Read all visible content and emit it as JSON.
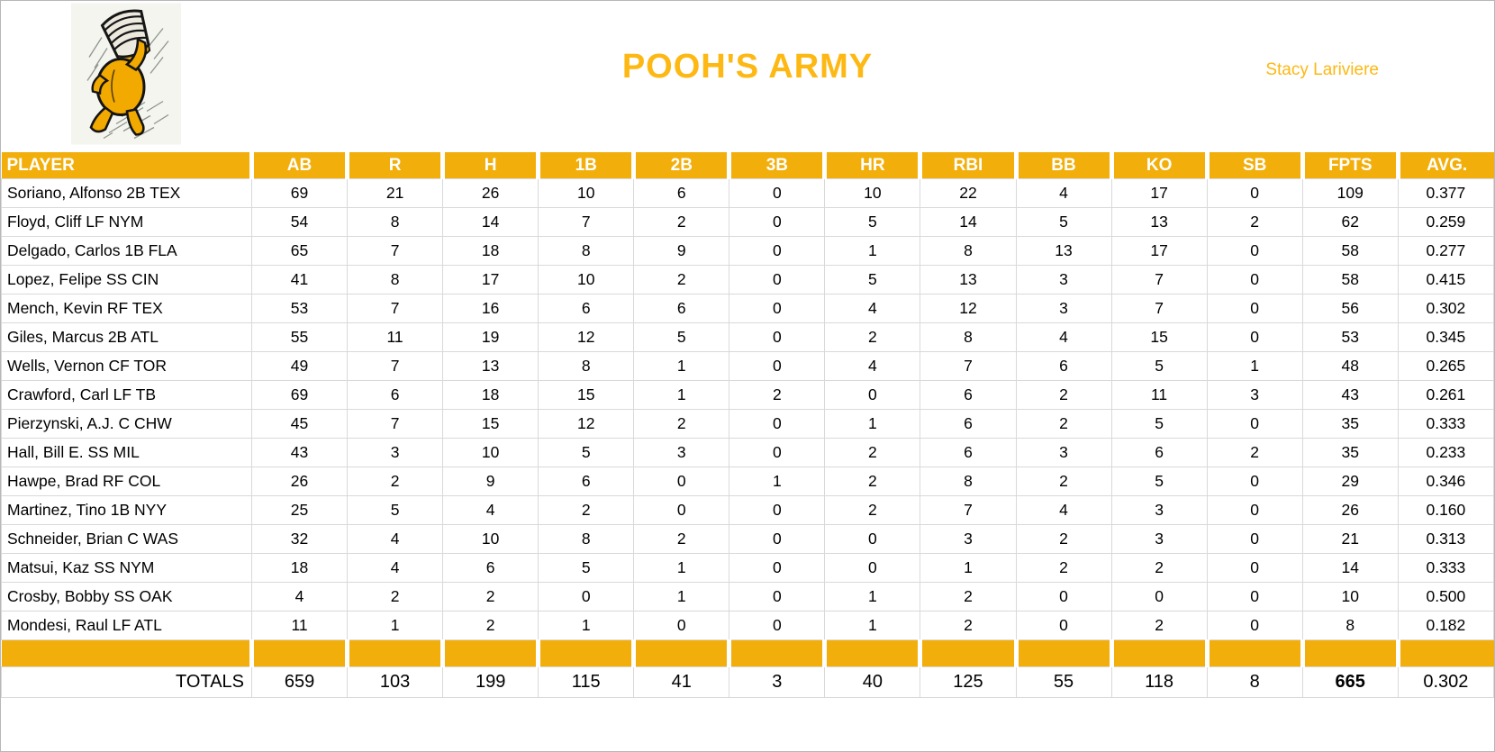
{
  "colors": {
    "gold": "#F2AF0C",
    "title_gold": "#FDB813"
  },
  "header": {
    "title": "POOH'S ARMY",
    "owner": "Stacy Lariviere",
    "logo": "winnie-the-pooh-honey-pot-illustration"
  },
  "table": {
    "columns": [
      "PLAYER",
      "AB",
      "R",
      "H",
      "1B",
      "2B",
      "3B",
      "HR",
      "RBI",
      "BB",
      "KO",
      "SB",
      "FPTS",
      "AVG."
    ],
    "rows": [
      [
        "Soriano, Alfonso 2B TEX",
        "69",
        "21",
        "26",
        "10",
        "6",
        "0",
        "10",
        "22",
        "4",
        "17",
        "0",
        "109",
        "0.377"
      ],
      [
        "Floyd, Cliff LF NYM",
        "54",
        "8",
        "14",
        "7",
        "2",
        "0",
        "5",
        "14",
        "5",
        "13",
        "2",
        "62",
        "0.259"
      ],
      [
        "Delgado, Carlos 1B FLA",
        "65",
        "7",
        "18",
        "8",
        "9",
        "0",
        "1",
        "8",
        "13",
        "17",
        "0",
        "58",
        "0.277"
      ],
      [
        "Lopez, Felipe SS CIN",
        "41",
        "8",
        "17",
        "10",
        "2",
        "0",
        "5",
        "13",
        "3",
        "7",
        "0",
        "58",
        "0.415"
      ],
      [
        "Mench, Kevin RF TEX",
        "53",
        "7",
        "16",
        "6",
        "6",
        "0",
        "4",
        "12",
        "3",
        "7",
        "0",
        "56",
        "0.302"
      ],
      [
        "Giles, Marcus 2B ATL",
        "55",
        "11",
        "19",
        "12",
        "5",
        "0",
        "2",
        "8",
        "4",
        "15",
        "0",
        "53",
        "0.345"
      ],
      [
        "Wells, Vernon CF TOR",
        "49",
        "7",
        "13",
        "8",
        "1",
        "0",
        "4",
        "7",
        "6",
        "5",
        "1",
        "48",
        "0.265"
      ],
      [
        "Crawford, Carl LF TB",
        "69",
        "6",
        "18",
        "15",
        "1",
        "2",
        "0",
        "6",
        "2",
        "11",
        "3",
        "43",
        "0.261"
      ],
      [
        "Pierzynski, A.J. C CHW",
        "45",
        "7",
        "15",
        "12",
        "2",
        "0",
        "1",
        "6",
        "2",
        "5",
        "0",
        "35",
        "0.333"
      ],
      [
        "Hall, Bill E. SS MIL",
        "43",
        "3",
        "10",
        "5",
        "3",
        "0",
        "2",
        "6",
        "3",
        "6",
        "2",
        "35",
        "0.233"
      ],
      [
        "Hawpe, Brad RF COL",
        "26",
        "2",
        "9",
        "6",
        "0",
        "1",
        "2",
        "8",
        "2",
        "5",
        "0",
        "29",
        "0.346"
      ],
      [
        "Martinez, Tino 1B NYY",
        "25",
        "5",
        "4",
        "2",
        "0",
        "0",
        "2",
        "7",
        "4",
        "3",
        "0",
        "26",
        "0.160"
      ],
      [
        "Schneider, Brian C WAS",
        "32",
        "4",
        "10",
        "8",
        "2",
        "0",
        "0",
        "3",
        "2",
        "3",
        "0",
        "21",
        "0.313"
      ],
      [
        "Matsui, Kaz SS NYM",
        "18",
        "4",
        "6",
        "5",
        "1",
        "0",
        "0",
        "1",
        "2",
        "2",
        "0",
        "14",
        "0.333"
      ],
      [
        "Crosby, Bobby SS OAK",
        "4",
        "2",
        "2",
        "0",
        "1",
        "0",
        "1",
        "2",
        "0",
        "0",
        "0",
        "10",
        "0.500"
      ],
      [
        "Mondesi, Raul LF ATL",
        "11",
        "1",
        "2",
        "1",
        "0",
        "0",
        "1",
        "2",
        "0",
        "2",
        "0",
        "8",
        "0.182"
      ]
    ],
    "totals": [
      "TOTALS",
      "659",
      "103",
      "199",
      "115",
      "41",
      "3",
      "40",
      "125",
      "55",
      "118",
      "8",
      "665",
      "0.302"
    ]
  }
}
